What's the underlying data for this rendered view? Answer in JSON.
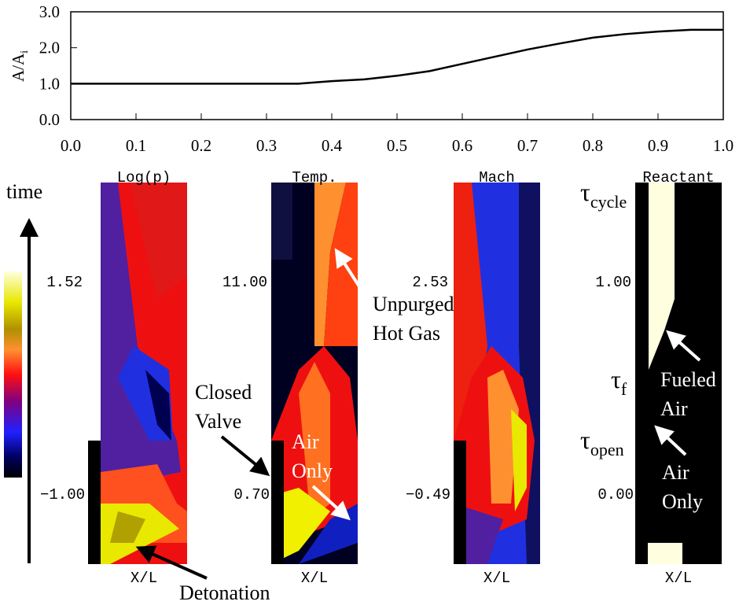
{
  "chart_data": {
    "type": "line",
    "ylabel": "A/A",
    "ylabel_sub": "i",
    "x": [
      0.0,
      0.35,
      0.4,
      0.45,
      0.5,
      0.55,
      0.6,
      0.65,
      0.7,
      0.75,
      0.8,
      0.85,
      0.9,
      0.95,
      1.0
    ],
    "values": [
      1.0,
      1.0,
      1.07,
      1.12,
      1.22,
      1.35,
      1.55,
      1.75,
      1.95,
      2.12,
      2.28,
      2.38,
      2.45,
      2.5,
      2.5
    ],
    "color": "#000000",
    "xlim": [
      0,
      1
    ],
    "ylim": [
      0,
      3
    ],
    "xticks": [
      {
        "value": 0,
        "label": "0.0"
      },
      0.1,
      0.2,
      0.3,
      0.4,
      0.5,
      0.6,
      0.7,
      0.8,
      0.9,
      {
        "value": 1,
        "label": "1.0"
      }
    ],
    "yticks": [
      {
        "value": 0,
        "label": "0.0"
      },
      {
        "value": 1,
        "label": "1.0"
      },
      {
        "value": 2,
        "label": "2.0"
      },
      {
        "value": 3,
        "label": "3.0"
      }
    ]
  },
  "time_label": "time",
  "panels": [
    {
      "title": "Log(p)",
      "max_label": "1.52",
      "min_label": "−1.00",
      "xlabel": "X/L"
    },
    {
      "title": "Temp.",
      "max_label": "11.00",
      "min_label": "0.70",
      "xlabel": "X/L"
    },
    {
      "title": "Mach",
      "max_label": "2.53",
      "min_label": "−0.49",
      "xlabel": "X/L"
    },
    {
      "title": "Reactant",
      "max_label": "1.00",
      "min_label": "0.00",
      "xlabel": "X/L"
    }
  ],
  "tau_labels": [
    {
      "base": "τ",
      "sub": "cycle"
    },
    {
      "base": "τ",
      "sub": "f"
    },
    {
      "base": "τ",
      "sub": "open"
    }
  ],
  "annotations": [
    {
      "lines": [
        "Unpurged",
        "Hot Gas"
      ]
    },
    {
      "lines": [
        "Closed",
        "Valve"
      ]
    },
    {
      "lines": [
        "Air",
        "Only"
      ]
    },
    {
      "lines": [
        "Detonation"
      ]
    },
    {
      "lines": [
        "Fueled",
        "Air"
      ]
    },
    {
      "lines": [
        "Air",
        "Only"
      ]
    }
  ]
}
